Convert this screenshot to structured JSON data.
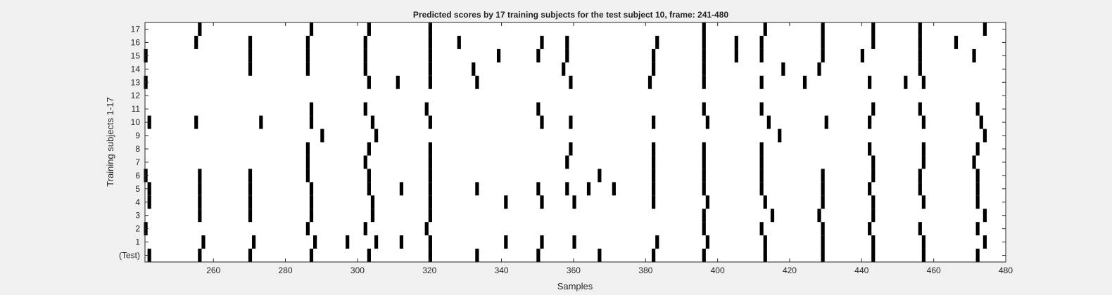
{
  "chart_data": {
    "type": "heatmap",
    "title": "Predicted scores by 17 training subjects for the test subject 10, frame: 241-480",
    "xlabel": "Samples",
    "ylabel": "Training subjects 1-17",
    "xlim": [
      241,
      480
    ],
    "x_ticks": [
      260,
      280,
      300,
      320,
      340,
      360,
      380,
      400,
      420,
      440,
      460,
      480
    ],
    "y_ticks": [
      "(Test)",
      "1",
      "2",
      "3",
      "4",
      "5",
      "6",
      "7",
      "8",
      "9",
      "10",
      "11",
      "12",
      "13",
      "14",
      "15",
      "16",
      "17"
    ],
    "grid": false,
    "colors": {
      "background": "#ffffff",
      "mark": "#000000",
      "figure": "#f0f0f0"
    },
    "rows": [
      {
        "label": "(Test)",
        "x": [
          242,
          256,
          270,
          287,
          303,
          320,
          333,
          350,
          367,
          382,
          396,
          413,
          429,
          443,
          457,
          472
        ]
      },
      {
        "label": "1",
        "x": [
          257,
          271,
          288,
          297,
          305,
          312,
          320,
          341,
          351,
          360,
          383,
          397,
          413,
          429,
          443,
          457,
          474
        ]
      },
      {
        "label": "2",
        "x": [
          241,
          286,
          302,
          319,
          396,
          412,
          429,
          442,
          456,
          472
        ]
      },
      {
        "label": "3",
        "x": [
          256,
          270,
          287,
          304,
          320,
          396,
          415,
          428,
          443,
          474
        ]
      },
      {
        "label": "4",
        "x": [
          242,
          256,
          270,
          287,
          304,
          320,
          341,
          351,
          360,
          382,
          397,
          413,
          429,
          443,
          457,
          472
        ]
      },
      {
        "label": "5",
        "x": [
          242,
          256,
          270,
          287,
          303,
          312,
          320,
          333,
          350,
          358,
          364,
          371,
          382,
          396,
          412,
          429,
          442,
          456,
          472
        ]
      },
      {
        "label": "6",
        "x": [
          241,
          256,
          270,
          286,
          303,
          320,
          367,
          382,
          396,
          412,
          429,
          443,
          456,
          472
        ]
      },
      {
        "label": "7",
        "x": [
          286,
          302,
          320,
          358,
          382,
          396,
          412,
          443,
          457,
          471
        ]
      },
      {
        "label": "8",
        "x": [
          286,
          303,
          320,
          359,
          382,
          396,
          412,
          442,
          457,
          472
        ]
      },
      {
        "label": "9",
        "x": [
          290,
          305,
          417,
          474
        ]
      },
      {
        "label": "10",
        "x": [
          242,
          255,
          273,
          287,
          304,
          320,
          351,
          359,
          382,
          397,
          414,
          430,
          442,
          457,
          473
        ]
      },
      {
        "label": "11",
        "x": [
          287,
          302,
          319,
          350,
          396,
          412,
          443,
          456,
          472
        ]
      },
      {
        "label": "12",
        "x": []
      },
      {
        "label": "13",
        "x": [
          241,
          303,
          311,
          320,
          333,
          359,
          381,
          396,
          412,
          424,
          442,
          452,
          457
        ]
      },
      {
        "label": "14",
        "x": [
          270,
          286,
          302,
          320,
          332,
          357,
          382,
          396,
          418,
          428,
          456
        ]
      },
      {
        "label": "15",
        "x": [
          241,
          270,
          286,
          302,
          320,
          339,
          350,
          358,
          382,
          396,
          405,
          412,
          429,
          440,
          456,
          471
        ]
      },
      {
        "label": "16",
        "x": [
          255,
          270,
          286,
          302,
          320,
          328,
          351,
          358,
          383,
          396,
          405,
          412,
          429,
          443,
          456,
          466
        ]
      },
      {
        "label": "17",
        "x": [
          256,
          287,
          303,
          320,
          396,
          413,
          429,
          443,
          456,
          474
        ]
      }
    ]
  }
}
